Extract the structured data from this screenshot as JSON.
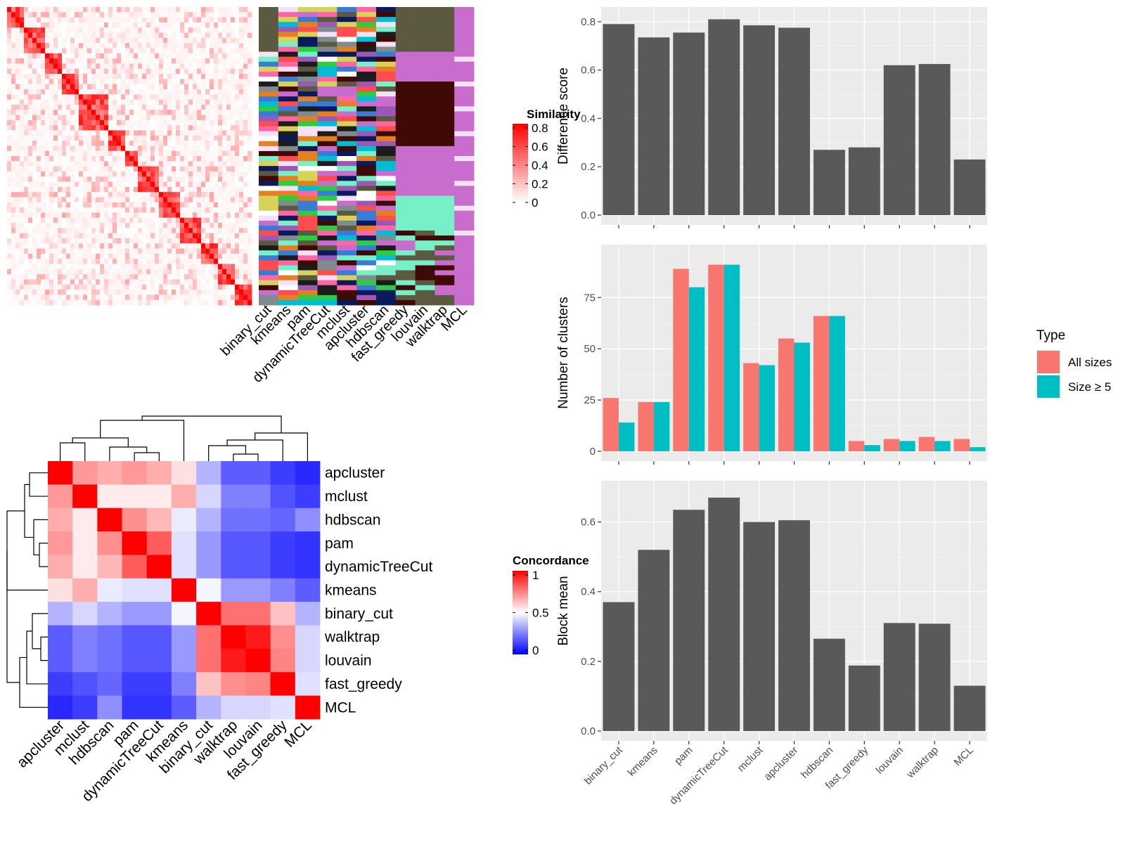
{
  "colors": {
    "panel_bg": "#ebebeb",
    "grid_major": "#ffffff",
    "bar_fill": "#595959",
    "all_sizes": "#F8766D",
    "size_ge5": "#00BFC4",
    "sim_high": "#ff0000",
    "sim_low": "#ffffff",
    "conc_high": "#ff0000",
    "conc_mid": "#ffffff",
    "conc_low": "#0000ff"
  },
  "methods_order_bars": [
    "binary_cut",
    "kmeans",
    "pam",
    "dynamicTreeCut",
    "mclust",
    "apcluster",
    "hdbscan",
    "fast_greedy",
    "louvain",
    "walktrap",
    "MCL"
  ],
  "similarity_heatmap": {
    "legend_title": "Similarity",
    "legend_ticks": [
      "0.8",
      "0.6",
      "0.4",
      "0.2",
      "0"
    ],
    "column_labels": [
      "binary_cut",
      "kmeans",
      "pam",
      "dynamicTreeCut",
      "mclust",
      "apcluster",
      "hdbscan",
      "fast_greedy",
      "louvain",
      "walktrap",
      "MCL"
    ]
  },
  "concordance_heatmap": {
    "legend_title": "Concordance",
    "legend_ticks": [
      "1",
      "0.5",
      "0"
    ],
    "labels": [
      "apcluster",
      "mclust",
      "hdbscan",
      "pam",
      "dynamicTreeCut",
      "kmeans",
      "binary_cut",
      "walktrap",
      "louvain",
      "fast_greedy",
      "MCL"
    ],
    "values": [
      [
        1.0,
        0.7,
        0.66,
        0.7,
        0.66,
        0.56,
        0.35,
        0.18,
        0.18,
        0.12,
        0.08
      ],
      [
        0.7,
        1.0,
        0.54,
        0.54,
        0.54,
        0.66,
        0.42,
        0.25,
        0.25,
        0.16,
        0.12
      ],
      [
        0.66,
        0.54,
        1.0,
        0.72,
        0.64,
        0.46,
        0.35,
        0.22,
        0.22,
        0.2,
        0.28
      ],
      [
        0.7,
        0.54,
        0.72,
        1.0,
        0.82,
        0.44,
        0.3,
        0.17,
        0.17,
        0.12,
        0.1
      ],
      [
        0.66,
        0.54,
        0.64,
        0.82,
        1.0,
        0.44,
        0.3,
        0.17,
        0.17,
        0.12,
        0.1
      ],
      [
        0.56,
        0.66,
        0.46,
        0.44,
        0.44,
        1.0,
        0.48,
        0.3,
        0.3,
        0.25,
        0.18
      ],
      [
        0.35,
        0.42,
        0.35,
        0.3,
        0.3,
        0.48,
        1.0,
        0.78,
        0.78,
        0.62,
        0.35
      ],
      [
        0.18,
        0.25,
        0.22,
        0.17,
        0.17,
        0.3,
        0.78,
        1.0,
        0.95,
        0.72,
        0.42
      ],
      [
        0.18,
        0.25,
        0.22,
        0.17,
        0.17,
        0.3,
        0.78,
        0.95,
        1.0,
        0.74,
        0.42
      ],
      [
        0.12,
        0.16,
        0.2,
        0.12,
        0.12,
        0.25,
        0.62,
        0.72,
        0.74,
        1.0,
        0.44
      ],
      [
        0.08,
        0.12,
        0.28,
        0.1,
        0.1,
        0.18,
        0.35,
        0.42,
        0.42,
        0.44,
        1.0
      ]
    ]
  },
  "chart_data": [
    {
      "type": "bar",
      "ylabel": "Difference score",
      "ylim": [
        0,
        0.82
      ],
      "yticks": [
        "0.0",
        "0.2",
        "0.4",
        "0.6",
        "0.8"
      ],
      "categories": [
        "binary_cut",
        "kmeans",
        "pam",
        "dynamicTreeCut",
        "mclust",
        "apcluster",
        "hdbscan",
        "fast_greedy",
        "louvain",
        "walktrap",
        "MCL"
      ],
      "values": [
        0.79,
        0.735,
        0.755,
        0.81,
        0.785,
        0.775,
        0.27,
        0.28,
        0.62,
        0.625,
        0.23
      ]
    },
    {
      "type": "bar",
      "ylabel": "Number of clusters",
      "ylim": [
        0,
        96
      ],
      "yticks": [
        "0",
        "25",
        "50",
        "75"
      ],
      "legend_title": "Type",
      "legend_position": "right",
      "categories": [
        "binary_cut",
        "kmeans",
        "pam",
        "dynamicTreeCut",
        "mclust",
        "apcluster",
        "hdbscan",
        "fast_greedy",
        "louvain",
        "walktrap",
        "MCL"
      ],
      "series": [
        {
          "name": "All sizes",
          "values": [
            26,
            24,
            89,
            91,
            43,
            55,
            66,
            5,
            6,
            7,
            6
          ]
        },
        {
          "name": "Size ≥ 5",
          "values": [
            14,
            24,
            80,
            91,
            42,
            53,
            66,
            3,
            5,
            5,
            2
          ]
        }
      ]
    },
    {
      "type": "bar",
      "ylabel": "Block mean",
      "ylim": [
        0,
        0.69
      ],
      "yticks": [
        "0.0",
        "0.2",
        "0.4",
        "0.6"
      ],
      "categories": [
        "binary_cut",
        "kmeans",
        "pam",
        "dynamicTreeCut",
        "mclust",
        "apcluster",
        "hdbscan",
        "fast_greedy",
        "louvain",
        "walktrap",
        "MCL"
      ],
      "values": [
        0.37,
        0.52,
        0.635,
        0.67,
        0.6,
        0.605,
        0.265,
        0.188,
        0.31,
        0.308,
        0.13
      ]
    }
  ]
}
